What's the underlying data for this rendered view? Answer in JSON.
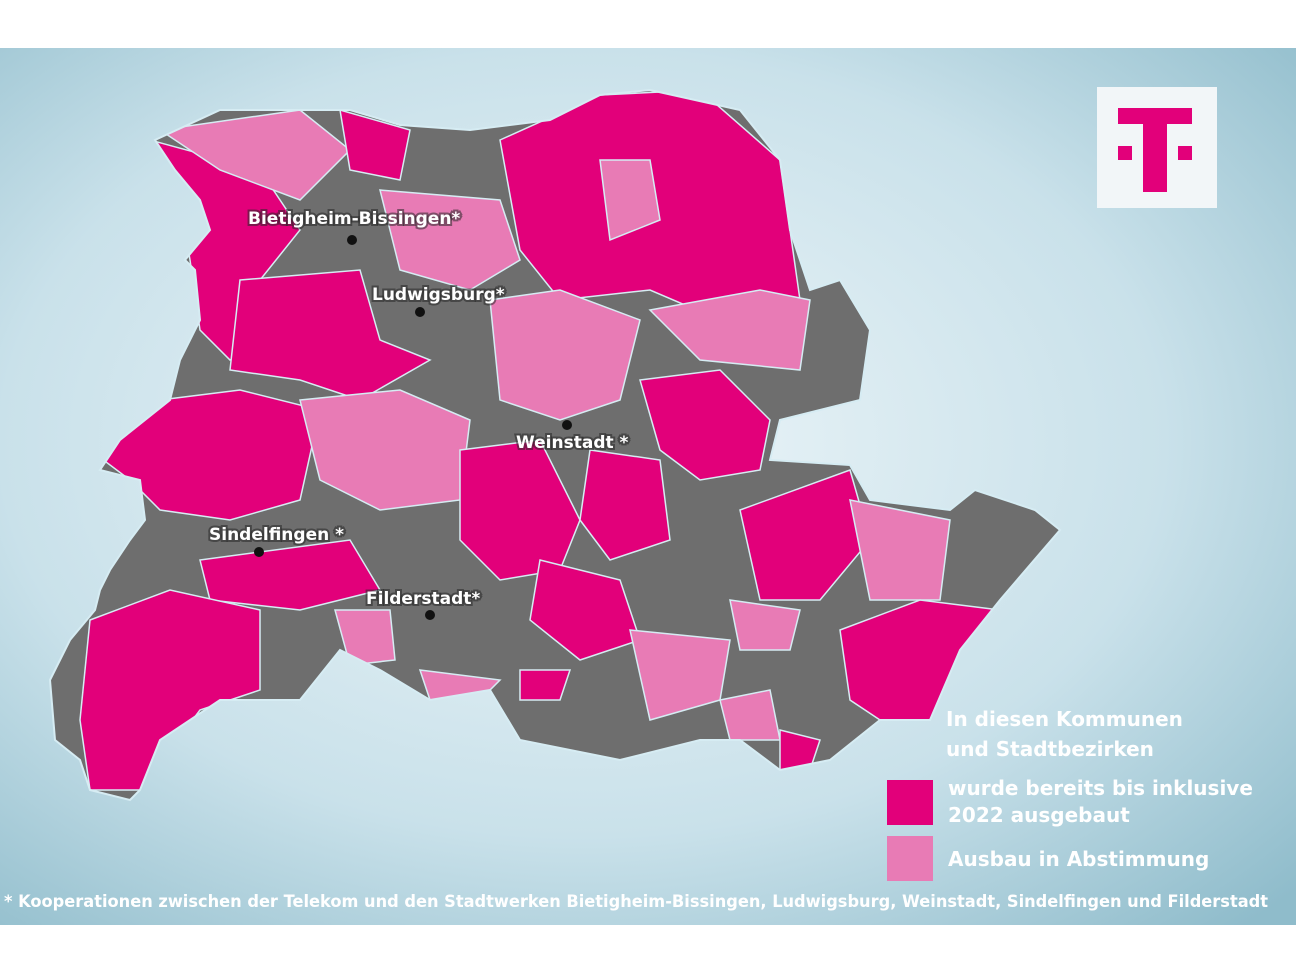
{
  "cities": [
    {
      "label": "Bietigheim-Bissingen*"
    },
    {
      "label": "Ludwigsburg*"
    },
    {
      "label": "Weinstadt *"
    },
    {
      "label": "Sindelfingen *"
    },
    {
      "label": "Filderstadt*"
    }
  ],
  "legend": {
    "title_lines": [
      "In diesen Kommunen",
      "und Stadtbezirken"
    ],
    "items": [
      {
        "lines": [
          "wurde bereits bis inklusive",
          "2022 ausgebaut"
        ]
      },
      {
        "lines": [
          "Ausbau in Abstimmung"
        ]
      }
    ]
  },
  "footnote": "* Kooperationen zwischen der Telekom und den Stadtwerken Bietigheim-Bissingen, Ludwigsburg, Weinstadt, Sindelfingen und Filderstadt"
}
